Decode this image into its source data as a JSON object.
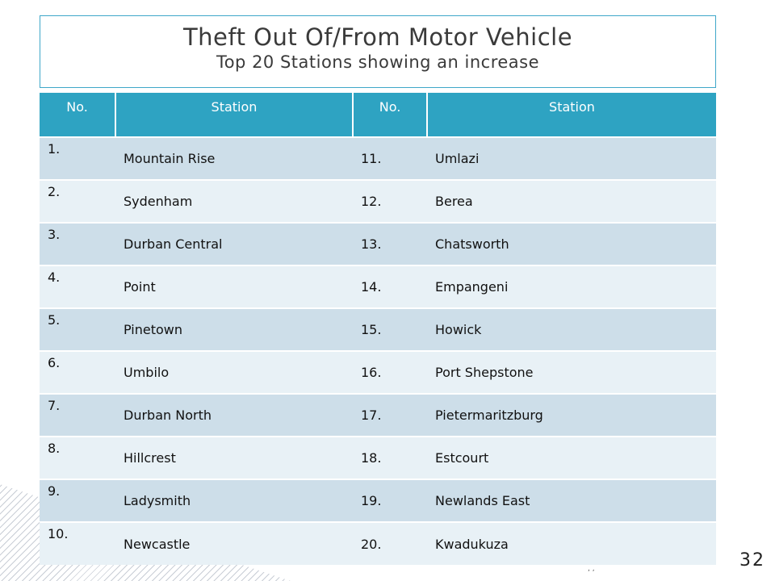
{
  "title": {
    "main": "Theft Out Of/From Motor Vehicle",
    "sub": "Top 20 Stations showing an increase"
  },
  "table": {
    "headers": [
      "No.",
      "Station",
      "No.",
      "Station"
    ],
    "rows": [
      [
        "1.",
        "Mountain Rise",
        "11.",
        "Umlazi"
      ],
      [
        "2.",
        "Sydenham",
        "12.",
        "Berea"
      ],
      [
        "3.",
        "Durban Central",
        "13.",
        "Chatsworth"
      ],
      [
        "4.",
        "Point",
        "14.",
        "Empangeni"
      ],
      [
        "5.",
        "Pinetown",
        "15.",
        "Howick"
      ],
      [
        "6.",
        "Umbilo",
        "16.",
        "Port Shepstone"
      ],
      [
        "7.",
        "Durban North",
        "17.",
        "Pietermaritzburg"
      ],
      [
        "8.",
        "Hillcrest",
        "18.",
        "Estcourt"
      ],
      [
        "9.",
        "Ladysmith",
        "19.",
        "Newlands East"
      ],
      [
        "10.",
        "Newcastle",
        "20.",
        "Kwadukuza"
      ]
    ]
  },
  "page_number": "32",
  "footer_mark": ", ,",
  "colors": {
    "header_bg": "#2ea3c2",
    "row_odd": "#cddee9",
    "row_even": "#e8f1f6",
    "title_border": "#3fa7c9"
  }
}
